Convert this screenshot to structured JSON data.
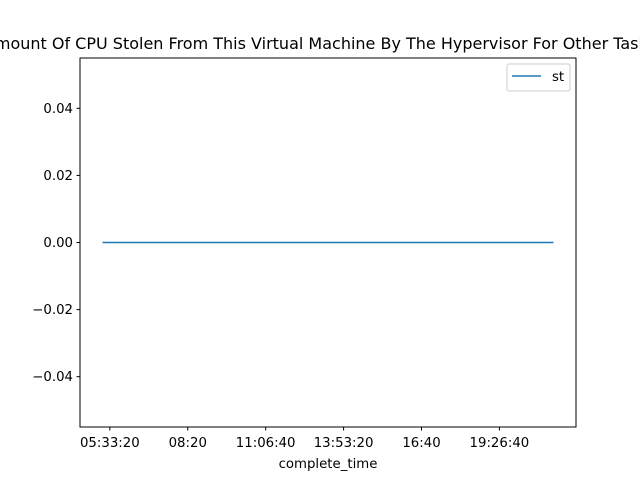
{
  "chart_data": {
    "type": "line",
    "title": "Amount Of CPU Stolen From This Virtual Machine By The Hypervisor For Other Tasks",
    "xlabel": "complete_time",
    "ylabel": "",
    "x_tick_labels": [
      "05:33:20",
      "08:20",
      "11:06:40",
      "13:53:20",
      "16:40",
      "19:26:40"
    ],
    "x_tick_seconds": [
      20000,
      30000,
      40000,
      50000,
      60000,
      70000
    ],
    "xlim_seconds": [
      16170,
      79830
    ],
    "y_ticks": [
      0.04,
      0.02,
      0.0,
      -0.02,
      -0.04
    ],
    "y_tick_labels": [
      "0.04",
      "0.02",
      "0.00",
      "−0.02",
      "−0.04"
    ],
    "ylim": [
      -0.055,
      0.055
    ],
    "series": [
      {
        "name": "st",
        "color": "#1f77b4",
        "x_seconds": [
          19060,
          76940
        ],
        "values": [
          0.0,
          0.0
        ]
      }
    ],
    "legend": {
      "position": "top-right",
      "entries": [
        "st"
      ]
    },
    "grid": false
  }
}
